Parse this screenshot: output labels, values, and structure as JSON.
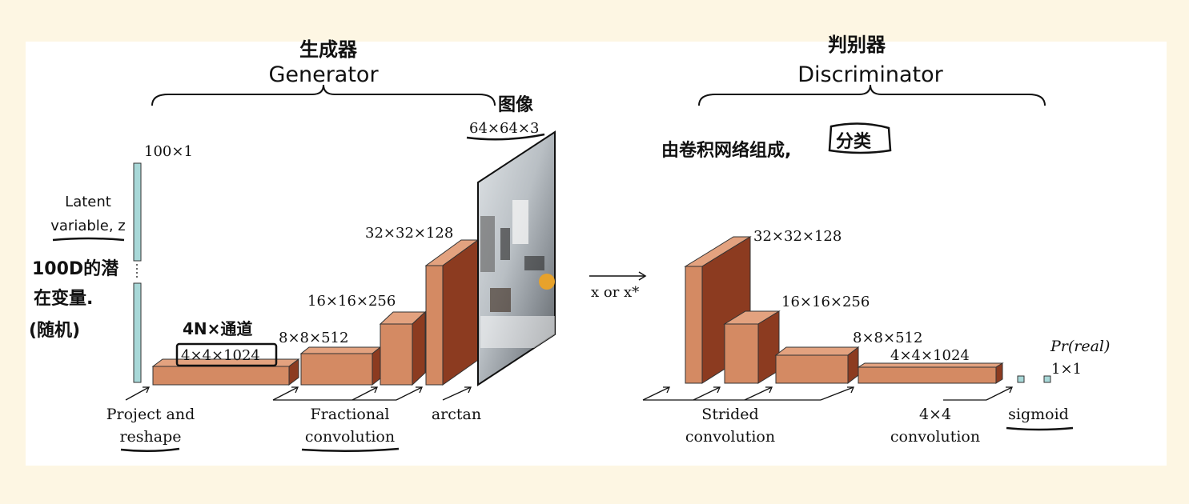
{
  "generator": {
    "title": "Generator",
    "note_title": "生成器",
    "latent_label_line1": "Latent",
    "latent_label_line2": "variable, z",
    "latent_size": "100×1",
    "latent_note_line1": "100D的潜",
    "latent_note_line2": "在变量.",
    "latent_note_line3": "(随机)",
    "dims": [
      "4×4×1024",
      "8×8×512",
      "16×16×256",
      "32×32×128",
      "64×64×3"
    ],
    "shape_note": "4N×通道",
    "image_note": "图像",
    "steps": {
      "project_line1": "Project and",
      "project_line2": "reshape",
      "frac_line1": "Fractional",
      "frac_line2": "convolution",
      "arctan": "arctan"
    }
  },
  "link_label": "x or x*",
  "discriminator": {
    "title": "Discriminator",
    "note_title": "判别器",
    "note_desc": "由卷积网络组成,",
    "note_class": "分类",
    "dims": [
      "32×32×128",
      "16×16×256",
      "8×8×512",
      "4×4×1024"
    ],
    "output_label": "Pr(real)",
    "output_size": "1×1",
    "steps": {
      "strided_line1": "Strided",
      "strided_line2": "convolution",
      "conv44_line1": "4×4",
      "conv44_line2": "convolution",
      "sigmoid": "sigmoid"
    }
  },
  "colors": {
    "block_front": "#d48a63",
    "block_top": "#e3a27f",
    "block_side": "#8c3b20",
    "latent": "#a8d8d8",
    "ink": "#111111"
  }
}
